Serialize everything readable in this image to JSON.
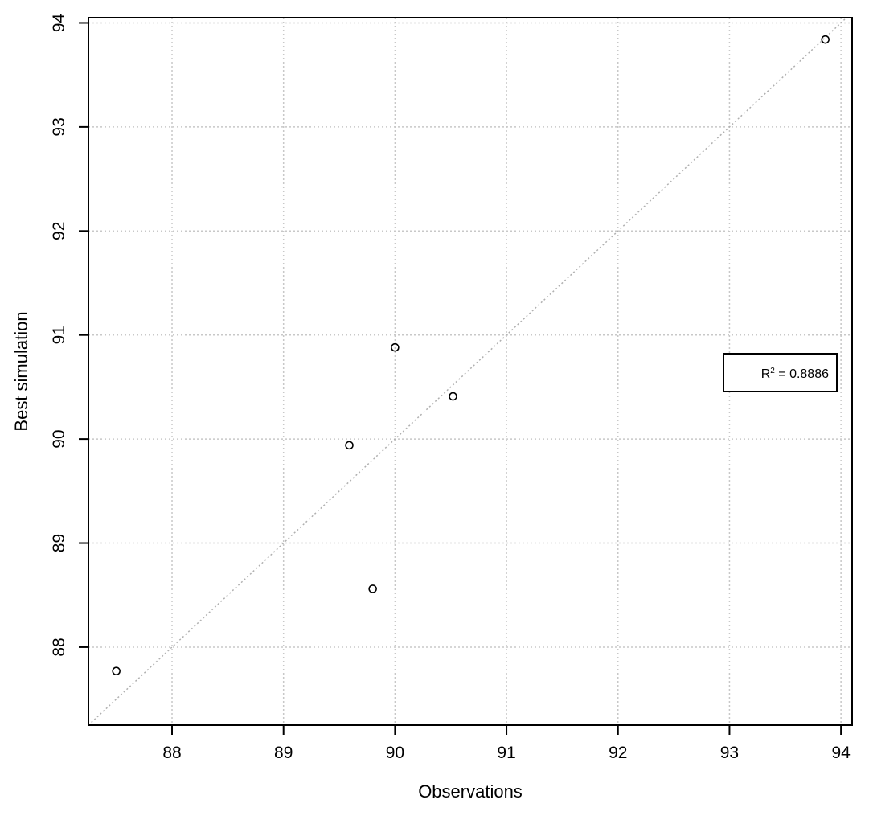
{
  "chart_data": {
    "type": "scatter",
    "title": "",
    "xlabel": "Observations",
    "ylabel": "Best simulation",
    "xlim": [
      87.25,
      94.1
    ],
    "ylim": [
      87.25,
      94.05
    ],
    "x_ticks": [
      88,
      89,
      90,
      91,
      92,
      93,
      94
    ],
    "y_ticks": [
      88,
      89,
      90,
      91,
      92,
      93,
      94
    ],
    "grid": true,
    "reference_line": "1:1",
    "points": [
      {
        "x": 87.5,
        "y": 87.77
      },
      {
        "x": 89.59,
        "y": 89.94
      },
      {
        "x": 89.8,
        "y": 88.56
      },
      {
        "x": 90.0,
        "y": 90.88
      },
      {
        "x": 90.52,
        "y": 90.41
      },
      {
        "x": 93.86,
        "y": 93.84
      }
    ],
    "annotation": {
      "r2_label": "R",
      "r2_sup": "2",
      "r2_value": " = 0.8886",
      "position": "right"
    }
  }
}
